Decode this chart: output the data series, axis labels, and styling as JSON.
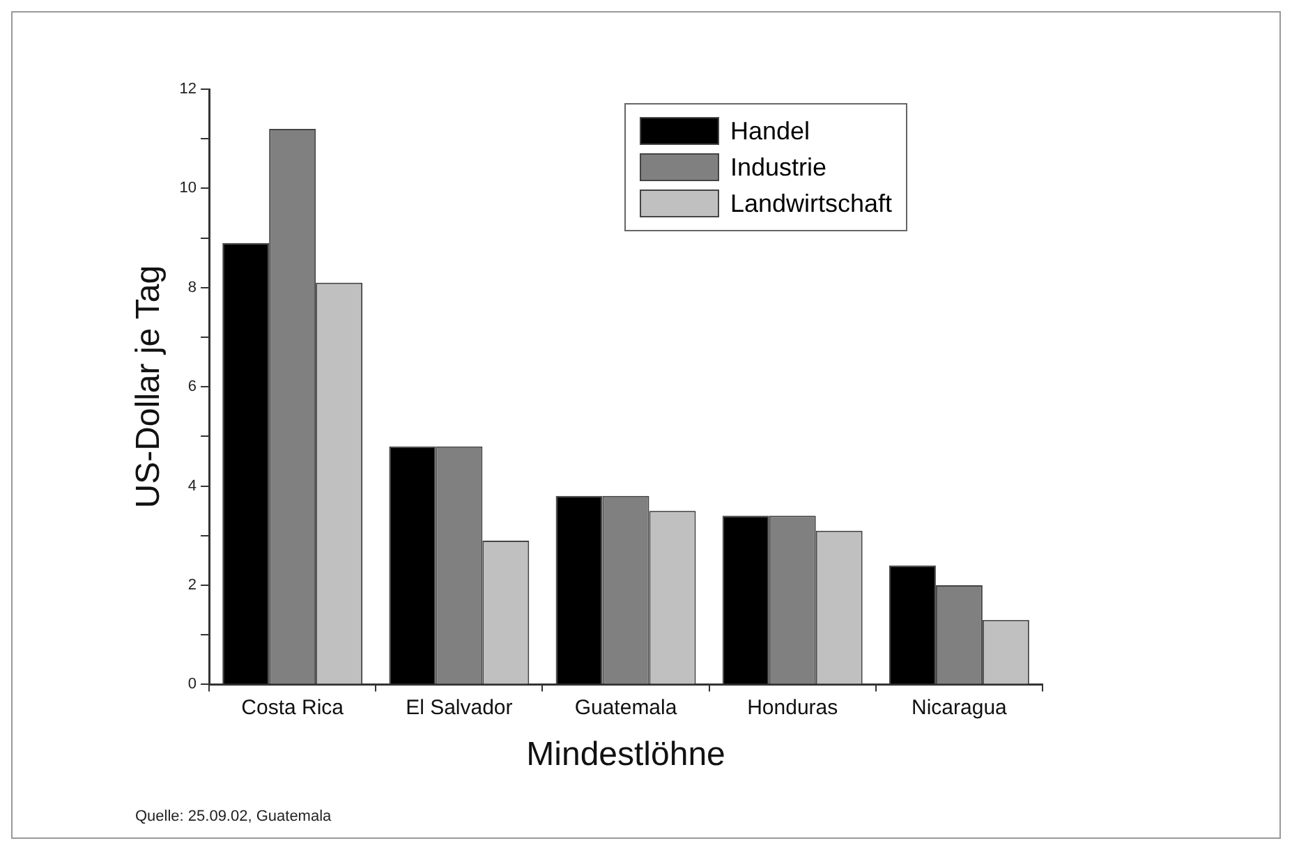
{
  "chart_data": {
    "type": "bar",
    "xlabel": "Mindestlöhne",
    "ylabel": "US-Dollar je Tag",
    "categories": [
      "Costa Rica",
      "El Salvador",
      "Guatemala",
      "Honduras",
      "Nicaragua"
    ],
    "series": [
      {
        "name": "Handel",
        "color": "#000000",
        "values": [
          8.9,
          4.8,
          3.8,
          3.4,
          2.4
        ]
      },
      {
        "name": "Industrie",
        "color": "#808080",
        "values": [
          11.2,
          4.8,
          3.8,
          3.4,
          2.0
        ]
      },
      {
        "name": "Landwirtschaft",
        "color": "#c0c0c0",
        "values": [
          8.1,
          2.9,
          3.5,
          3.1,
          1.3
        ]
      }
    ],
    "ylim": [
      0,
      12
    ],
    "yticks": [
      0,
      {
        "value": 1,
        "label": null
      },
      2,
      {
        "value": 3,
        "label": null
      },
      4,
      {
        "value": 5,
        "label": null
      },
      6,
      {
        "value": 7,
        "label": null
      },
      8,
      {
        "value": 9,
        "label": null
      },
      10,
      {
        "value": 11,
        "label": null
      },
      12
    ],
    "grid": false,
    "legend": "top right",
    "annotations": [
      "Quelle: 25.09.02, Guatemala"
    ]
  }
}
